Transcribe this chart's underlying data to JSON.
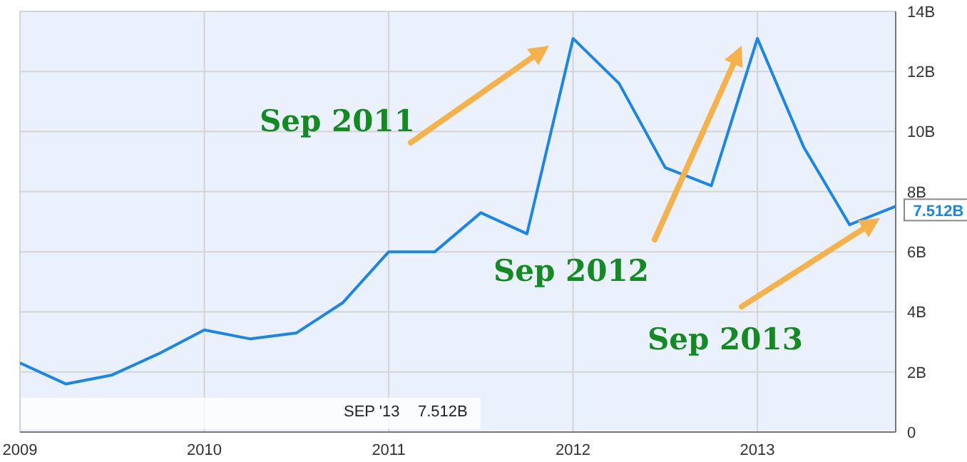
{
  "chart_data": {
    "type": "line",
    "x": [
      2009,
      2009.25,
      2009.5,
      2009.75,
      2010,
      2010.25,
      2010.5,
      2010.75,
      2011,
      2011.25,
      2011.5,
      2011.75,
      2012,
      2012.25,
      2012.5,
      2012.75,
      2013,
      2013.25,
      2013.5,
      2013.75
    ],
    "series": [
      {
        "color": "#1a86e8",
        "values": [
          2.3,
          1.6,
          1.9,
          2.6,
          3.4,
          3.1,
          3.3,
          4.3,
          6.0,
          6.0,
          7.3,
          6.6,
          13.1,
          11.6,
          8.8,
          8.2,
          13.1,
          9.5,
          6.9,
          7.512
        ],
        "value_labels": [
          null,
          null,
          null,
          null,
          null,
          null,
          null,
          null,
          null,
          null,
          null,
          null,
          null,
          null,
          null,
          null,
          null,
          null,
          null,
          "7.512B"
        ]
      }
    ],
    "xlim": [
      2009,
      2013.75
    ],
    "xticks": [
      2009,
      2010,
      2011,
      2012,
      2013
    ],
    "ylim": [
      0,
      14
    ],
    "yticks": [
      0,
      {
        "value": 2,
        "label": "2B"
      },
      {
        "value": 4,
        "label": "4B"
      },
      {
        "value": 6,
        "label": "6B"
      },
      {
        "value": 8,
        "label": "8B"
      },
      {
        "value": 10,
        "label": "10B"
      },
      {
        "value": 12,
        "label": "12B"
      },
      {
        "value": 14,
        "label": "14B"
      }
    ],
    "grid": true,
    "legend": false,
    "marker": "none",
    "line_style": "solid",
    "annotations": [
      "Sep 2011",
      "Sep 2012",
      "Sep 2013",
      "SEP '13",
      "7.512B"
    ]
  }
}
